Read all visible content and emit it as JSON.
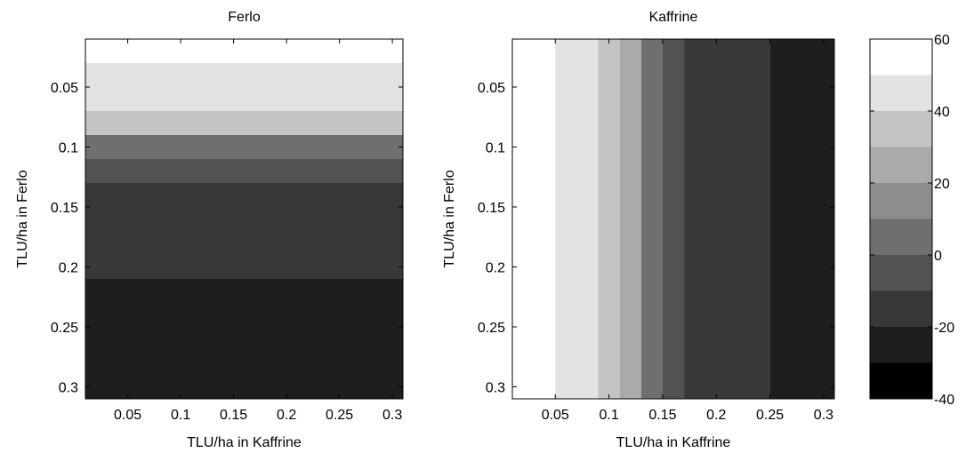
{
  "chart_data": [
    {
      "type": "heatmap",
      "title": "Ferlo",
      "xlabel": "TLU/ha in Kaffrine",
      "ylabel": "TLU/ha in Ferlo",
      "xlim": [
        0.01,
        0.31
      ],
      "ylim": [
        0.01,
        0.31
      ],
      "y_reversed": true,
      "x_ticks": [
        "0.05",
        "0.1",
        "0.15",
        "0.2",
        "0.25",
        "0.3"
      ],
      "x_tick_values": [
        0.05,
        0.1,
        0.15,
        0.2,
        0.25,
        0.3
      ],
      "y_ticks": [
        "0.05",
        "0.1",
        "0.15",
        "0.2",
        "0.25",
        "0.3"
      ],
      "y_tick_values": [
        0.05,
        0.1,
        0.15,
        0.2,
        0.25,
        0.3
      ],
      "bands_axis": "y",
      "bands": [
        {
          "from": 0.01,
          "to": 0.03,
          "value": 55
        },
        {
          "from": 0.03,
          "to": 0.07,
          "value": 45
        },
        {
          "from": 0.07,
          "to": 0.09,
          "value": 35
        },
        {
          "from": 0.09,
          "to": 0.11,
          "value": 5
        },
        {
          "from": 0.11,
          "to": 0.13,
          "value": -5
        },
        {
          "from": 0.13,
          "to": 0.21,
          "value": -15
        },
        {
          "from": 0.21,
          "to": 0.31,
          "value": -25
        }
      ]
    },
    {
      "type": "heatmap",
      "title": "Kaffrine",
      "xlabel": "TLU/ha in Kaffrine",
      "ylabel": "TLU/ha in Ferlo",
      "xlim": [
        0.01,
        0.31
      ],
      "ylim": [
        0.01,
        0.31
      ],
      "y_reversed": true,
      "x_ticks": [
        "0.05",
        "0.1",
        "0.15",
        "0.2",
        "0.25",
        "0.3"
      ],
      "x_tick_values": [
        0.05,
        0.1,
        0.15,
        0.2,
        0.25,
        0.3
      ],
      "y_ticks": [
        "0.05",
        "0.1",
        "0.15",
        "0.2",
        "0.25",
        "0.3"
      ],
      "y_tick_values": [
        0.05,
        0.1,
        0.15,
        0.2,
        0.25,
        0.3
      ],
      "bands_axis": "x",
      "bands": [
        {
          "from": 0.01,
          "to": 0.05,
          "value": 55
        },
        {
          "from": 0.05,
          "to": 0.09,
          "value": 45
        },
        {
          "from": 0.09,
          "to": 0.11,
          "value": 35
        },
        {
          "from": 0.11,
          "to": 0.13,
          "value": 25
        },
        {
          "from": 0.13,
          "to": 0.15,
          "value": 5
        },
        {
          "from": 0.15,
          "to": 0.17,
          "value": -5
        },
        {
          "from": 0.17,
          "to": 0.25,
          "value": -15
        },
        {
          "from": 0.25,
          "to": 0.31,
          "value": -25
        }
      ]
    }
  ],
  "colorbar": {
    "min": -40,
    "max": 60,
    "levels": [
      {
        "from": -40,
        "to": -30,
        "color": "#000000"
      },
      {
        "from": -30,
        "to": -20,
        "color": "#1e1e1e"
      },
      {
        "from": -20,
        "to": -10,
        "color": "#383838"
      },
      {
        "from": -10,
        "to": 0,
        "color": "#525252"
      },
      {
        "from": 0,
        "to": 10,
        "color": "#6f6f6f"
      },
      {
        "from": 10,
        "to": 20,
        "color": "#8d8d8d"
      },
      {
        "from": 20,
        "to": 30,
        "color": "#aaaaaa"
      },
      {
        "from": 30,
        "to": 40,
        "color": "#c4c4c4"
      },
      {
        "from": 40,
        "to": 50,
        "color": "#e2e2e2"
      },
      {
        "from": 50,
        "to": 60,
        "color": "#ffffff"
      }
    ],
    "ticks": [
      "60",
      "40",
      "20",
      "0",
      "-20",
      "-40"
    ],
    "tick_values": [
      60,
      40,
      20,
      0,
      -20,
      -40
    ]
  }
}
